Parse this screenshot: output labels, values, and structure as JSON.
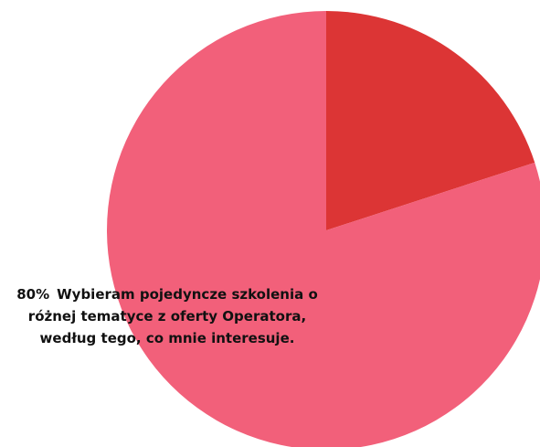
{
  "chart_data": {
    "type": "pie",
    "categories": [
      null,
      "Wybieram pojedyncze szkolenia o różnej tematyce z oferty Operatora, według tego, co mnie interesuje."
    ],
    "values": [
      20,
      80
    ],
    "value_labels": [
      null,
      "80%"
    ],
    "colors": [
      "#dc3535",
      "#f2607a"
    ]
  }
}
